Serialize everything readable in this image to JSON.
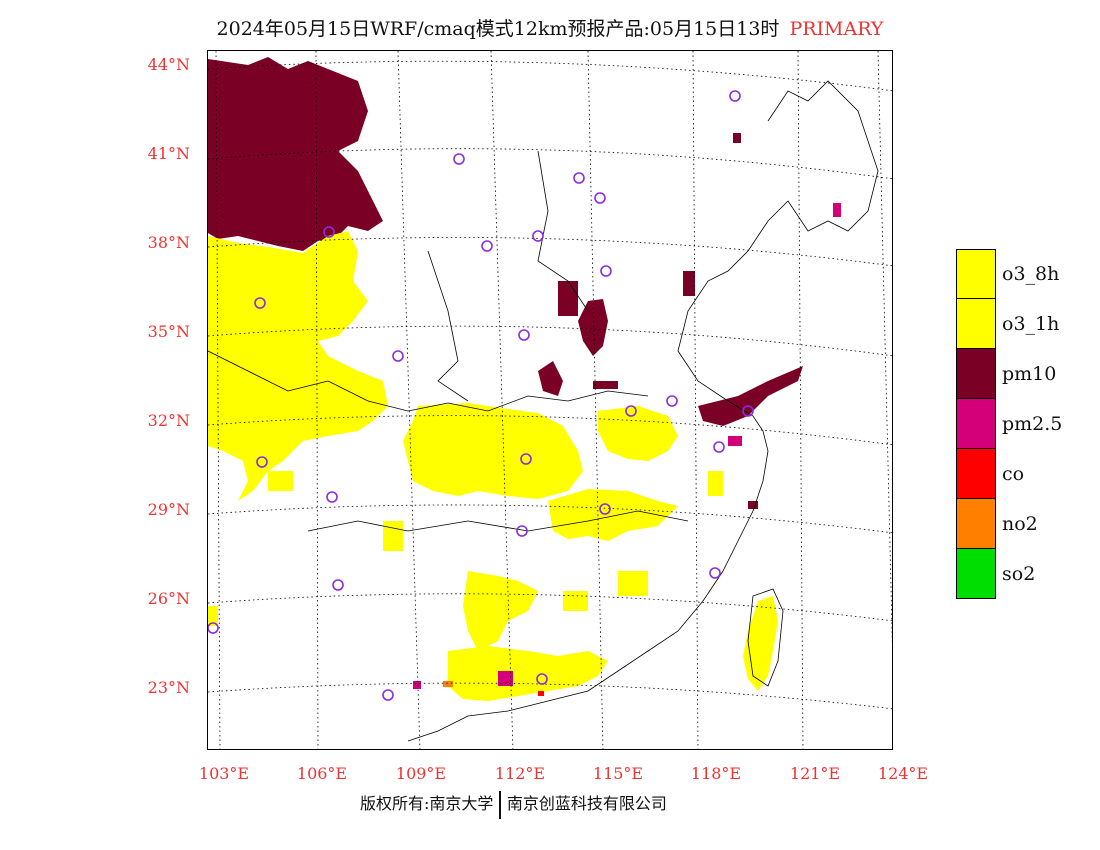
{
  "title": {
    "main": "2024年05月15日WRF/cmaq模式12km预报产品:05月15日13时",
    "tag": "PRIMARY"
  },
  "axes": {
    "lat_labels": [
      "44°N",
      "41°N",
      "38°N",
      "35°N",
      "32°N",
      "29°N",
      "26°N",
      "23°N"
    ],
    "lon_labels": [
      "103°E",
      "106°E",
      "109°E",
      "112°E",
      "115°E",
      "118°E",
      "121°E",
      "124°E"
    ]
  },
  "legend": [
    {
      "label": "o3_8h",
      "color": "#ffff00"
    },
    {
      "label": "o3_1h",
      "color": "#ffff00"
    },
    {
      "label": "pm10",
      "color": "#7a0026"
    },
    {
      "label": "pm2.5",
      "color": "#d4007a"
    },
    {
      "label": "co",
      "color": "#ff0000"
    },
    {
      "label": "no2",
      "color": "#ff7f00"
    },
    {
      "label": "so2",
      "color": "#00dd00"
    }
  ],
  "footer": {
    "left": "版权所有:南京大学",
    "right": "南京创蓝科技有限公司"
  }
}
